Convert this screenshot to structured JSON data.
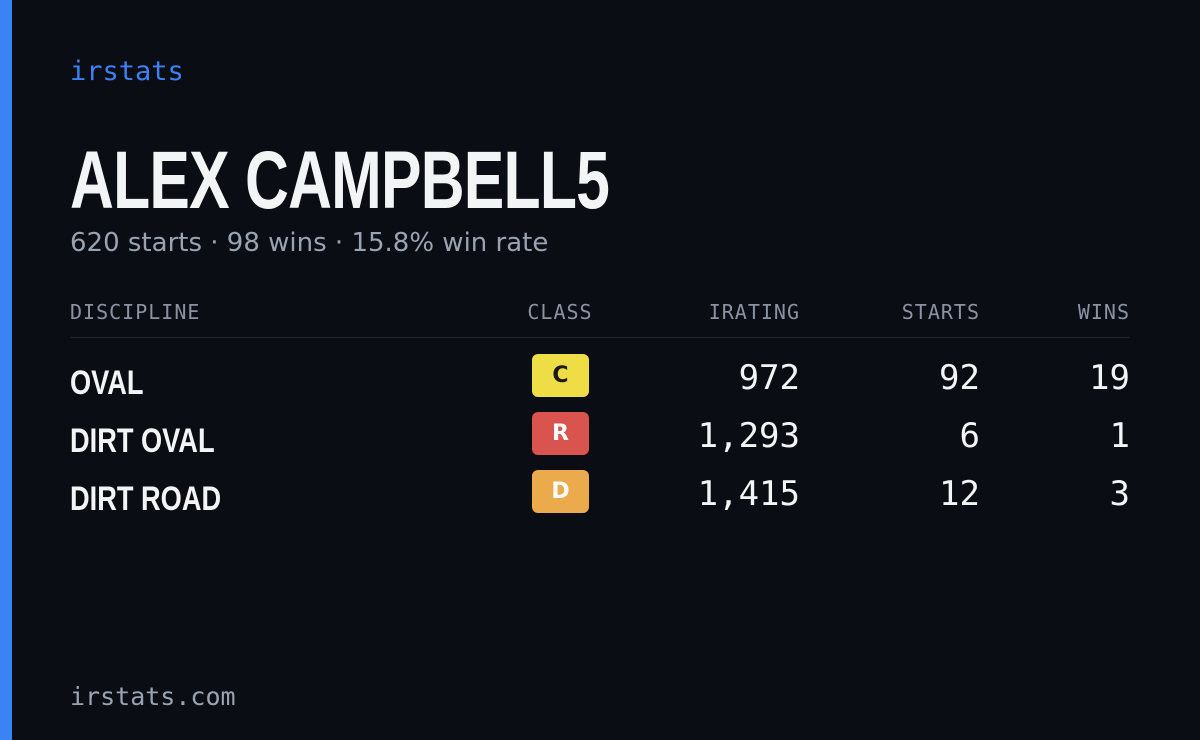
{
  "header": {
    "brand": "irstats",
    "name": "ALEX CAMPBELL5",
    "subtitle": "620 starts · 98 wins · 15.8% win rate"
  },
  "table": {
    "columns": [
      "DISCIPLINE",
      "CLASS",
      "IRATING",
      "STARTS",
      "WINS"
    ],
    "rows": [
      [
        "OVAL",
        "C",
        "972",
        "92",
        "19"
      ],
      [
        "DIRT OVAL",
        "R",
        "1,293",
        "6",
        "1"
      ],
      [
        "DIRT ROAD",
        "D",
        "1,415",
        "12",
        "3"
      ]
    ]
  },
  "footer": {
    "url": "irstats.com"
  }
}
